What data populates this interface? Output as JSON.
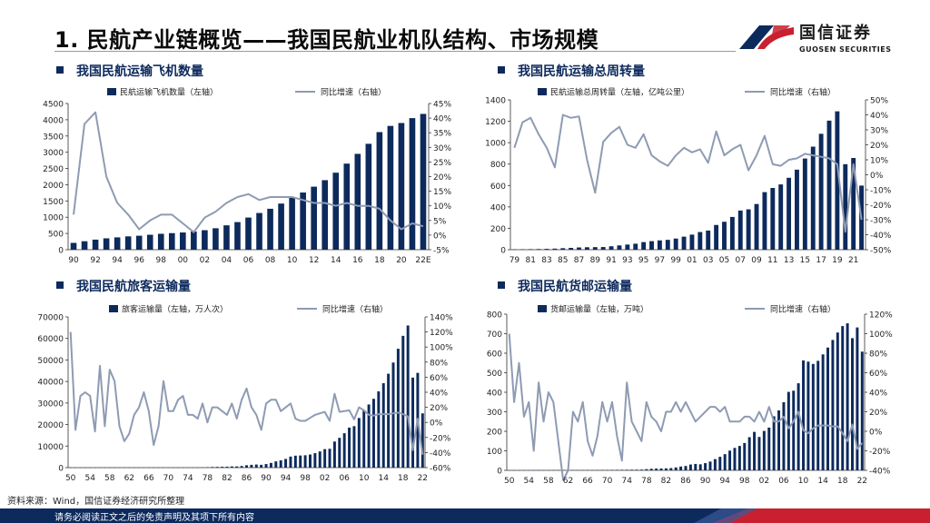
{
  "header": {
    "title": "1. 民航产业链概览——我国民航业机队结构、市场规模",
    "logo_name": "国信证券",
    "logo_sub": "GUOSEN SECURITIES"
  },
  "footer": {
    "source": "资料来源：Wind，国信证券经济研究所整理",
    "disclaimer": "请务必阅读正文之后的免责声明及其项下所有内容"
  },
  "colors": {
    "bar": "#0d2a5c",
    "line": "#8e9bb3",
    "brand_blue": "#0d2a5c",
    "brand_red": "#c8202f"
  },
  "chart_data": [
    {
      "type": "bar",
      "title": "我国民航运输飞机数量",
      "bar_legend": "民航运输飞机数量（左轴）",
      "line_legend": "同比增速（右轴）",
      "categories": [
        "90",
        "91",
        "92",
        "93",
        "94",
        "95",
        "96",
        "97",
        "98",
        "99",
        "00",
        "01",
        "02",
        "03",
        "04",
        "05",
        "06",
        "07",
        "08",
        "09",
        "10",
        "11",
        "12",
        "13",
        "14",
        "15",
        "16",
        "17",
        "18",
        "19",
        "20",
        "21",
        "22E"
      ],
      "tick_labels": [
        "90",
        "92",
        "94",
        "96",
        "98",
        "00",
        "02",
        "04",
        "06",
        "08",
        "10",
        "12",
        "14",
        "16",
        "18",
        "20",
        "22E"
      ],
      "values": [
        210,
        260,
        310,
        350,
        380,
        410,
        430,
        460,
        490,
        510,
        530,
        560,
        600,
        660,
        750,
        850,
        990,
        1130,
        1260,
        1420,
        1600,
        1760,
        1940,
        2140,
        2370,
        2650,
        2950,
        3260,
        3620,
        3810,
        3900,
        4050,
        4180
      ],
      "yoy": [
        7,
        38,
        42,
        20,
        11,
        7,
        2,
        5,
        7,
        7,
        4,
        1,
        6,
        8,
        11,
        13,
        14,
        12,
        13,
        13,
        13,
        12,
        11,
        11,
        10,
        11,
        10,
        10,
        9,
        5,
        2,
        4,
        3
      ],
      "left_axis": {
        "min": 0,
        "max": 4500,
        "ticks": [
          0,
          500,
          1000,
          1500,
          2000,
          2500,
          3000,
          3500,
          4000,
          4500
        ]
      },
      "right_axis": {
        "min": -5,
        "max": 45,
        "ticks": [
          "-5%",
          "0%",
          "5%",
          "10%",
          "15%",
          "20%",
          "25%",
          "30%",
          "35%",
          "40%",
          "45%"
        ]
      }
    },
    {
      "type": "bar",
      "title": "我国民航运输总周转量",
      "bar_legend": "民航运输总周转量（左轴，亿吨公里）",
      "line_legend": "同比增速（右轴）",
      "categories": [
        "79",
        "80",
        "81",
        "82",
        "83",
        "84",
        "85",
        "86",
        "87",
        "88",
        "89",
        "90",
        "91",
        "92",
        "93",
        "94",
        "95",
        "96",
        "97",
        "98",
        "99",
        "00",
        "01",
        "02",
        "03",
        "04",
        "05",
        "06",
        "07",
        "08",
        "09",
        "10",
        "11",
        "12",
        "13",
        "14",
        "15",
        "16",
        "17",
        "18",
        "19",
        "20",
        "21",
        "22"
      ],
      "tick_labels": [
        "79",
        "81",
        "83",
        "85",
        "87",
        "89",
        "91",
        "93",
        "95",
        "97",
        "99",
        "01",
        "03",
        "05",
        "07",
        "09",
        "11",
        "13",
        "15",
        "17",
        "19",
        "21"
      ],
      "values": [
        3,
        4,
        5,
        6,
        8,
        10,
        14,
        17,
        21,
        23,
        24,
        25,
        32,
        40,
        48,
        56,
        71,
        80,
        87,
        92,
        104,
        122,
        141,
        165,
        179,
        231,
        261,
        306,
        366,
        377,
        427,
        538,
        577,
        610,
        672,
        748,
        852,
        963,
        1083,
        1206,
        1293,
        799,
        857,
        599
      ],
      "yoy": [
        18,
        35,
        38,
        27,
        18,
        5,
        40,
        38,
        39,
        10,
        -12,
        22,
        28,
        32,
        20,
        18,
        27,
        13,
        9,
        6,
        13,
        18,
        15,
        17,
        8,
        29,
        13,
        17,
        20,
        3,
        13,
        26,
        7,
        6,
        10,
        11,
        14,
        13,
        12,
        11,
        7,
        -38,
        7,
        -30
      ],
      "left_axis": {
        "min": 0,
        "max": 1400,
        "ticks": [
          0,
          200,
          400,
          600,
          800,
          1000,
          1200,
          1400
        ]
      },
      "right_axis": {
        "min": -50,
        "max": 50,
        "ticks": [
          "-50%",
          "-40%",
          "-30%",
          "-20%",
          "-10%",
          "0%",
          "10%",
          "20%",
          "30%",
          "40%",
          "50%"
        ]
      }
    },
    {
      "type": "bar",
      "title": "我国民航旅客运输量",
      "bar_legend": "旅客运输量（左轴，万人次）",
      "line_legend": "同比增速（右轴）",
      "categories": [
        "50",
        "51",
        "52",
        "53",
        "54",
        "55",
        "56",
        "57",
        "58",
        "59",
        "60",
        "61",
        "62",
        "63",
        "64",
        "65",
        "66",
        "67",
        "68",
        "69",
        "70",
        "71",
        "72",
        "73",
        "74",
        "75",
        "76",
        "77",
        "78",
        "79",
        "80",
        "81",
        "82",
        "83",
        "84",
        "85",
        "86",
        "87",
        "88",
        "89",
        "90",
        "91",
        "92",
        "93",
        "94",
        "95",
        "96",
        "97",
        "98",
        "99",
        "00",
        "01",
        "02",
        "03",
        "04",
        "05",
        "06",
        "07",
        "08",
        "09",
        "10",
        "11",
        "12",
        "13",
        "14",
        "15",
        "16",
        "17",
        "18",
        "19",
        "20",
        "21",
        "22"
      ],
      "tick_labels": [
        "50",
        "54",
        "58",
        "62",
        "66",
        "70",
        "74",
        "78",
        "82",
        "86",
        "90",
        "94",
        "98",
        "02",
        "06",
        "10",
        "14",
        "18",
        "22"
      ],
      "values": [
        1,
        2,
        2,
        3,
        4,
        5,
        8,
        7,
        10,
        15,
        15,
        9,
        7,
        8,
        10,
        15,
        17,
        11,
        11,
        18,
        20,
        23,
        30,
        50,
        55,
        60,
        60,
        75,
        200,
        300,
        340,
        400,
        440,
        550,
        560,
        750,
        1100,
        1300,
        1440,
        1300,
        1660,
        2180,
        2886,
        3380,
        4040,
        5120,
        5550,
        5630,
        5750,
        6090,
        6720,
        7520,
        8590,
        8760,
        12120,
        13830,
        15970,
        18580,
        19250,
        23050,
        26770,
        29320,
        31940,
        35400,
        39200,
        43600,
        48800,
        55200,
        61200,
        66000,
        41800,
        44000,
        25200
      ],
      "yoy": [
        120,
        -10,
        35,
        40,
        35,
        -12,
        75,
        -5,
        70,
        55,
        -5,
        -25,
        -15,
        10,
        20,
        40,
        15,
        -30,
        -5,
        55,
        15,
        15,
        30,
        35,
        10,
        10,
        5,
        25,
        0,
        20,
        20,
        15,
        10,
        25,
        5,
        30,
        45,
        20,
        10,
        -10,
        25,
        30,
        30,
        15,
        20,
        25,
        5,
        2,
        2,
        6,
        10,
        12,
        14,
        2,
        38,
        14,
        15,
        16,
        4,
        20,
        16,
        10,
        9,
        11,
        11,
        11,
        12,
        13,
        11,
        8,
        -37,
        5,
        -43
      ],
      "left_axis": {
        "min": 0,
        "max": 70000,
        "ticks": [
          0,
          10000,
          20000,
          30000,
          40000,
          50000,
          60000,
          70000
        ]
      },
      "right_axis": {
        "min": -60,
        "max": 140,
        "ticks": [
          "-60%",
          "-40%",
          "-20%",
          "0%",
          "20%",
          "40%",
          "60%",
          "80%",
          "100%",
          "120%",
          "140%"
        ]
      }
    },
    {
      "type": "bar",
      "title": "我国民航货邮运输量",
      "bar_legend": "货邮运输量（左轴，万吨）",
      "line_legend": "同比增速（右轴）",
      "categories": [
        "50",
        "51",
        "52",
        "53",
        "54",
        "55",
        "56",
        "57",
        "58",
        "59",
        "60",
        "61",
        "62",
        "63",
        "64",
        "65",
        "66",
        "67",
        "68",
        "69",
        "70",
        "71",
        "72",
        "73",
        "74",
        "75",
        "76",
        "77",
        "78",
        "79",
        "80",
        "81",
        "82",
        "83",
        "84",
        "85",
        "86",
        "87",
        "88",
        "89",
        "90",
        "91",
        "92",
        "93",
        "94",
        "95",
        "96",
        "97",
        "98",
        "99",
        "00",
        "01",
        "02",
        "03",
        "04",
        "05",
        "06",
        "07",
        "08",
        "09",
        "10",
        "11",
        "12",
        "13",
        "14",
        "15",
        "16",
        "17",
        "18",
        "19",
        "20",
        "21",
        "22"
      ],
      "tick_labels": [
        "50",
        "54",
        "58",
        "62",
        "66",
        "70",
        "74",
        "78",
        "82",
        "86",
        "90",
        "94",
        "98",
        "02",
        "06",
        "10",
        "14",
        "18",
        "22"
      ],
      "values": [
        0.1,
        0.2,
        0.3,
        0.4,
        0.5,
        0.6,
        0.7,
        0.8,
        1,
        1.2,
        1.4,
        1.3,
        1.1,
        1.2,
        1.4,
        1.6,
        1.8,
        1.6,
        1.7,
        2,
        2.2,
        2.4,
        2.6,
        2.8,
        3,
        3.2,
        3.4,
        3.7,
        6,
        8,
        9,
        9.4,
        10.2,
        11.6,
        15,
        19.5,
        22.4,
        29.9,
        32.8,
        31,
        37,
        45,
        57.5,
        69.4,
        82.9,
        101,
        115,
        125,
        140,
        170,
        197,
        171,
        202,
        219,
        277,
        307,
        349,
        402,
        408,
        446,
        563,
        557,
        545,
        561,
        594,
        629,
        668,
        706,
        739,
        753,
        677,
        732,
        608
      ],
      "yoy": [
        100,
        30,
        70,
        15,
        30,
        -20,
        50,
        10,
        40,
        30,
        -10,
        -50,
        -40,
        20,
        10,
        30,
        -10,
        -25,
        -5,
        30,
        10,
        30,
        -5,
        -30,
        50,
        10,
        0,
        -10,
        30,
        15,
        10,
        0,
        20,
        20,
        30,
        20,
        30,
        20,
        10,
        15,
        20,
        25,
        25,
        20,
        25,
        10,
        10,
        10,
        15,
        15,
        10,
        20,
        10,
        25,
        10,
        10,
        15,
        3,
        10,
        20,
        1,
        -2,
        3,
        6,
        6,
        6,
        5,
        5,
        -2,
        -10,
        7,
        -18,
        -12
      ],
      "left_axis": {
        "min": 0,
        "max": 800,
        "ticks": [
          0,
          100,
          200,
          300,
          400,
          500,
          600,
          700,
          800
        ]
      },
      "right_axis": {
        "min": -40,
        "max": 120,
        "ticks": [
          "-40%",
          "-20%",
          "0%",
          "20%",
          "40%",
          "60%",
          "80%",
          "100%",
          "120%"
        ]
      }
    }
  ]
}
